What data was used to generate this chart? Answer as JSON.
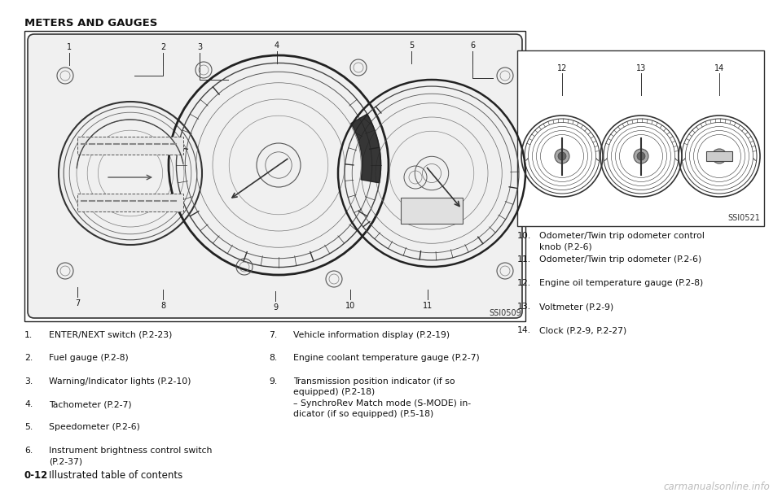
{
  "bg_color": "#ffffff",
  "title": "METERS AND GAUGES",
  "main_image_label": "SSI0509",
  "side_image_label": "SSI0521",
  "left_list": [
    {
      "num": "1.",
      "text": "ENTER/NEXT switch (P.2-23)"
    },
    {
      "num": "2.",
      "text": "Fuel gauge (P.2-8)"
    },
    {
      "num": "3.",
      "text": "Warning/Indicator lights (P.2-10)"
    },
    {
      "num": "4.",
      "text": "Tachometer (P.2-7)"
    },
    {
      "num": "5.",
      "text": "Speedometer (P.2-6)"
    },
    {
      "num": "6.",
      "text": "Instrument brightness control switch\n(P.2-37)"
    }
  ],
  "right_list": [
    {
      "num": "7.",
      "text": "Vehicle information display (P.2-19)"
    },
    {
      "num": "8.",
      "text": "Engine coolant temperature gauge (P.2-7)"
    },
    {
      "num": "9.",
      "text": "Transmission position indicator (if so\nequipped) (P.2-18)"
    },
    {
      "num": "",
      "text": "– SynchroRev Match mode (S-MODE) in-\ndicator (if so equipped) (P.5-18)"
    }
  ],
  "side_list": [
    {
      "num": "10.",
      "text": "Odometer/Twin trip odometer control\nknob (P.2-6)"
    },
    {
      "num": "11.",
      "text": "Odometer/Twin trip odometer (P.2-6)"
    },
    {
      "num": "12.",
      "text": "Engine oil temperature gauge (P.2-8)"
    },
    {
      "num": "13.",
      "text": "Voltmeter (P.2-9)"
    },
    {
      "num": "14.",
      "text": "Clock (P.2-9, P.2-27)"
    }
  ],
  "footer_text": "0-12",
  "footer_label": "Illustrated table of contents",
  "watermark": "carmanualsonline.info"
}
